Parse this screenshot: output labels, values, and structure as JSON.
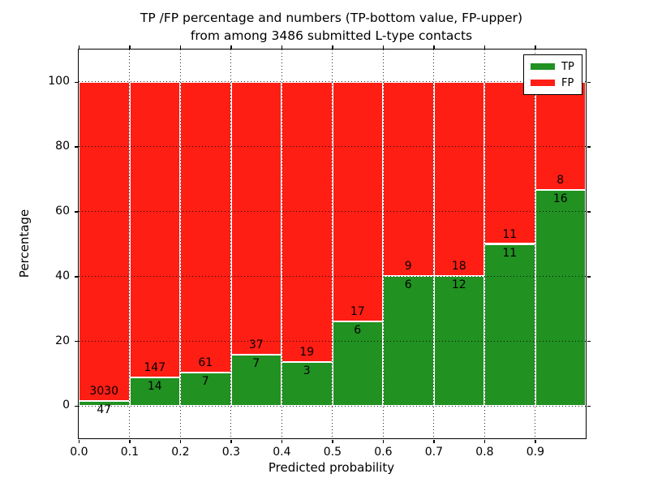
{
  "chart_data": {
    "type": "stacked_bar",
    "title_line1": "TP /FP percentage and numbers (TP-bottom value, FP-upper)",
    "title_line2": "from among 3486 submitted L-type contacts",
    "xlabel": "Predicted probability",
    "ylabel": "Percentage",
    "xlim": [
      0.0,
      1.0
    ],
    "ylim": [
      -10,
      110
    ],
    "bin_width": 0.1,
    "xticks": [
      0.0,
      0.1,
      0.2,
      0.3,
      0.4,
      0.5,
      0.6,
      0.7,
      0.8,
      0.9
    ],
    "xtick_labels": [
      "0.0",
      "0.1",
      "0.2",
      "0.3",
      "0.4",
      "0.5",
      "0.6",
      "0.7",
      "0.8",
      "0.9"
    ],
    "yticks": [
      0,
      20,
      40,
      60,
      80,
      100
    ],
    "ytick_labels": [
      "0",
      "20",
      "40",
      "60",
      "80",
      "100"
    ],
    "grid_style": "dotted",
    "legend_position": "upper-right",
    "bars_stack_to_percent": 100,
    "series": [
      {
        "name": "TP",
        "position": "bottom",
        "color": "#219121",
        "values": [
          47,
          14,
          7,
          7,
          3,
          6,
          6,
          12,
          11,
          16
        ]
      },
      {
        "name": "FP",
        "position": "top",
        "color": "#fe1e14",
        "values": [
          3030,
          147,
          61,
          37,
          19,
          17,
          9,
          18,
          11,
          8
        ]
      }
    ]
  }
}
